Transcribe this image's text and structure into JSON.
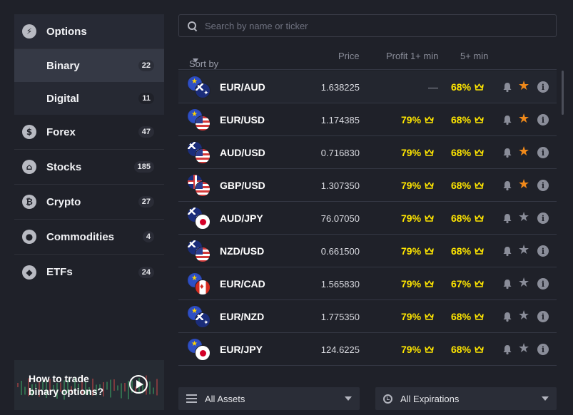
{
  "sidebar": {
    "options": {
      "label": "Options",
      "icon": "lightning-icon"
    },
    "subs": [
      {
        "label": "Binary",
        "count": "22",
        "active": true
      },
      {
        "label": "Digital",
        "count": "11",
        "active": false
      }
    ],
    "categories": [
      {
        "label": "Forex",
        "count": "47",
        "icon": "dollar-icon",
        "glyph": "$"
      },
      {
        "label": "Stocks",
        "count": "185",
        "icon": "bank-icon",
        "glyph": "⌂"
      },
      {
        "label": "Crypto",
        "count": "27",
        "icon": "bitcoin-icon",
        "glyph": "₿"
      },
      {
        "label": "Commodities",
        "count": "4",
        "icon": "drop-icon",
        "glyph": "●"
      },
      {
        "label": "ETFs",
        "count": "24",
        "icon": "cube-icon",
        "glyph": "◆"
      }
    ]
  },
  "promo": {
    "title": "How to trade binary options?"
  },
  "search": {
    "placeholder": "Search by name or ticker",
    "value": ""
  },
  "table": {
    "headers": {
      "sort": "Sort by Popularity",
      "price": "Price",
      "profit1": "Profit 1+ min",
      "profit5": "5+ min"
    },
    "rows": [
      {
        "pair": "EUR/AUD",
        "flags": [
          "eu",
          "au"
        ],
        "price": "1.638225",
        "p1": "—",
        "p5": "68%",
        "starred": true
      },
      {
        "pair": "EUR/USD",
        "flags": [
          "eu",
          "us"
        ],
        "price": "1.174385",
        "p1": "79%",
        "p5": "68%",
        "starred": true
      },
      {
        "pair": "AUD/USD",
        "flags": [
          "au",
          "us"
        ],
        "price": "0.716830",
        "p1": "79%",
        "p5": "68%",
        "starred": true
      },
      {
        "pair": "GBP/USD",
        "flags": [
          "gb",
          "us"
        ],
        "price": "1.307350",
        "p1": "79%",
        "p5": "68%",
        "starred": true
      },
      {
        "pair": "AUD/JPY",
        "flags": [
          "au",
          "jp"
        ],
        "price": "76.07050",
        "p1": "79%",
        "p5": "68%",
        "starred": false
      },
      {
        "pair": "NZD/USD",
        "flags": [
          "au",
          "us"
        ],
        "price": "0.661500",
        "p1": "79%",
        "p5": "68%",
        "starred": false
      },
      {
        "pair": "EUR/CAD",
        "flags": [
          "eu",
          "ca"
        ],
        "price": "1.565830",
        "p1": "79%",
        "p5": "67%",
        "starred": false
      },
      {
        "pair": "EUR/NZD",
        "flags": [
          "eu",
          "au"
        ],
        "price": "1.775350",
        "p1": "79%",
        "p5": "68%",
        "starred": false
      },
      {
        "pair": "EUR/JPY",
        "flags": [
          "eu",
          "jp"
        ],
        "price": "124.6225",
        "p1": "79%",
        "p5": "68%",
        "starred": false
      }
    ]
  },
  "filters": {
    "assets": "All Assets",
    "expirations": "All Expirations"
  },
  "colors": {
    "accent_yellow": "#ffe600",
    "star_active": "#f0891a",
    "star_inactive": "#8a8d99",
    "bg": "#1f2129"
  }
}
